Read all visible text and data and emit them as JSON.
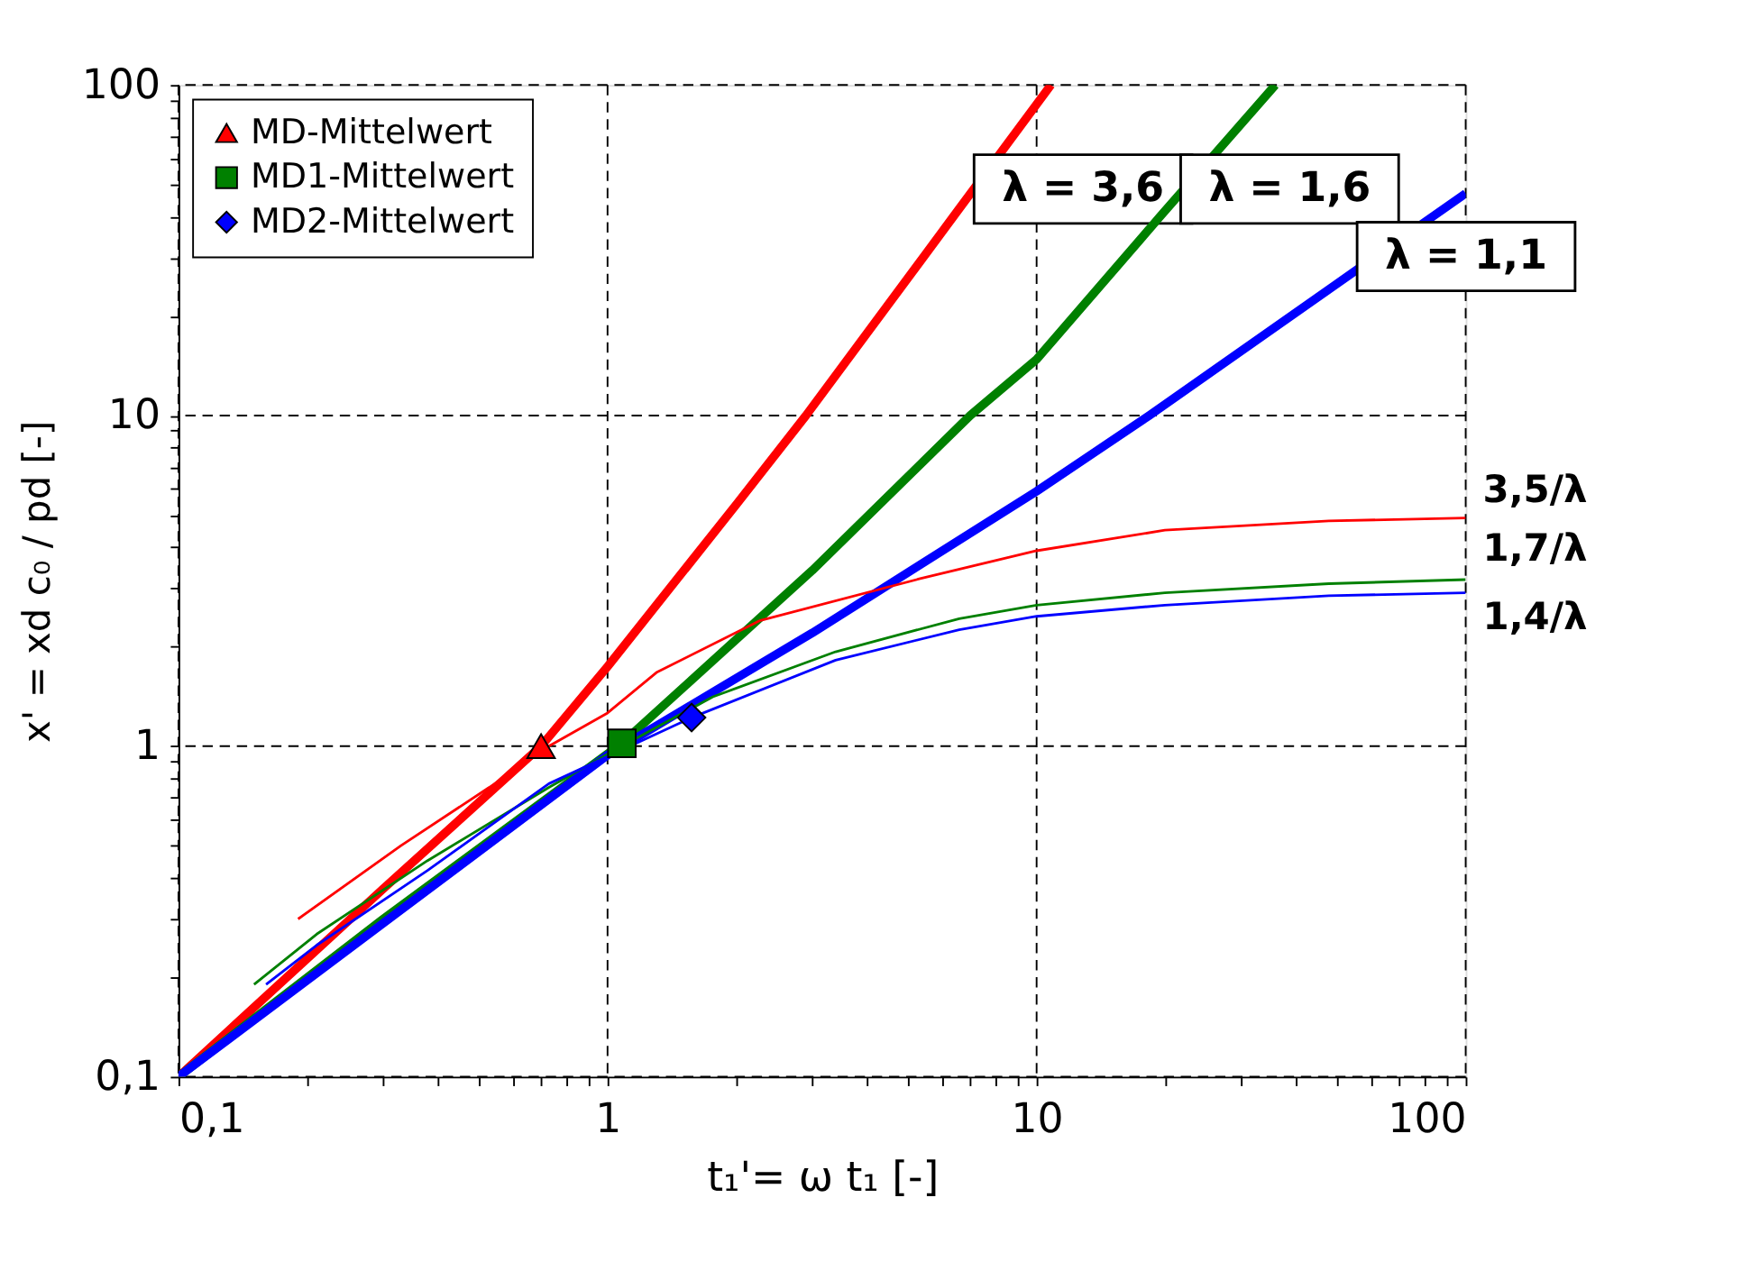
{
  "chart_data": {
    "type": "line",
    "xlabel": "t₁'= ω t₁ [-]",
    "ylabel": "x' = xd c₀ / pd [-]",
    "log": "xy",
    "grid": true,
    "legend": "top left",
    "xlim": [
      0.1,
      100
    ],
    "ylim": [
      0.1,
      100
    ],
    "xticks": [
      {
        "value": 0.1,
        "label": "0,1"
      },
      {
        "value": 0.2,
        "label": null
      },
      {
        "value": 0.3,
        "label": null
      },
      {
        "value": 0.4,
        "label": null
      },
      {
        "value": 0.5,
        "label": null
      },
      {
        "value": 0.6,
        "label": null
      },
      {
        "value": 0.7,
        "label": null
      },
      {
        "value": 0.8,
        "label": null
      },
      {
        "value": 0.9,
        "label": null
      },
      1,
      {
        "value": 2,
        "label": null
      },
      {
        "value": 3,
        "label": null
      },
      {
        "value": 4,
        "label": null
      },
      {
        "value": 5,
        "label": null
      },
      {
        "value": 6,
        "label": null
      },
      {
        "value": 7,
        "label": null
      },
      {
        "value": 8,
        "label": null
      },
      {
        "value": 9,
        "label": null
      },
      10,
      {
        "value": 20,
        "label": null
      },
      {
        "value": 30,
        "label": null
      },
      {
        "value": 40,
        "label": null
      },
      {
        "value": 50,
        "label": null
      },
      {
        "value": 60,
        "label": null
      },
      {
        "value": 70,
        "label": null
      },
      {
        "value": 80,
        "label": null
      },
      {
        "value": 90,
        "label": null
      },
      100
    ],
    "yticks": [
      {
        "value": 0.1,
        "label": "0,1"
      },
      {
        "value": 0.2,
        "label": null
      },
      {
        "value": 0.3,
        "label": null
      },
      {
        "value": 0.4,
        "label": null
      },
      {
        "value": 0.5,
        "label": null
      },
      {
        "value": 0.6,
        "label": null
      },
      {
        "value": 0.7,
        "label": null
      },
      {
        "value": 0.8,
        "label": null
      },
      {
        "value": 0.9,
        "label": null
      },
      1,
      {
        "value": 2,
        "label": null
      },
      {
        "value": 3,
        "label": null
      },
      {
        "value": 4,
        "label": null
      },
      {
        "value": 5,
        "label": null
      },
      {
        "value": 6,
        "label": null
      },
      {
        "value": 7,
        "label": null
      },
      {
        "value": 8,
        "label": null
      },
      {
        "value": 9,
        "label": null
      },
      10,
      {
        "value": 20,
        "label": null
      },
      {
        "value": 30,
        "label": null
      },
      {
        "value": 40,
        "label": null
      },
      {
        "value": 50,
        "label": null
      },
      {
        "value": 60,
        "label": null
      },
      {
        "value": 70,
        "label": null
      },
      {
        "value": 80,
        "label": null
      },
      {
        "value": 90,
        "label": null
      },
      100
    ],
    "series": [
      {
        "name": "λ = 3,6",
        "color": "#ff0000",
        "x": [
          0.1,
          0.3,
          0.7,
          1,
          2,
          2.9,
          6.4,
          10.8
        ],
        "values": [
          0.1,
          0.37,
          1.0,
          1.74,
          5.4,
          10,
          40,
          100
        ]
      },
      {
        "name": "λ = 1,6",
        "color": "#008000",
        "x": [
          0.1,
          0.3,
          1.08,
          3,
          7,
          10,
          19.4,
          36
        ],
        "values": [
          0.1,
          0.3,
          1.02,
          3.4,
          10,
          14.8,
          40,
          100
        ]
      },
      {
        "name": "λ = 1,1",
        "color": "#0000ff",
        "x": [
          0.1,
          1,
          3,
          10,
          18.3,
          50,
          100
        ],
        "values": [
          0.1,
          0.94,
          2.2,
          5.9,
          10,
          25,
          47
        ]
      },
      {
        "name": "3,5/λ",
        "color": "#ff0000",
        "x": [
          0.19,
          0.33,
          0.53,
          0.73,
          1.0,
          1.3,
          2.27,
          5.3,
          10,
          19.9,
          48,
          100
        ],
        "values": [
          0.3,
          0.5,
          0.75,
          1.0,
          1.26,
          1.67,
          2.4,
          3.2,
          3.9,
          4.5,
          4.8,
          4.9
        ]
      },
      {
        "name": "1,7/λ",
        "color": "#008000",
        "x": [
          0.15,
          0.21,
          0.38,
          0.73,
          1.08,
          1.76,
          3.4,
          6.6,
          10,
          19.9,
          48,
          100
        ],
        "values": [
          0.19,
          0.27,
          0.45,
          0.75,
          1.0,
          1.41,
          1.93,
          2.43,
          2.67,
          2.91,
          3.1,
          3.19
        ]
      },
      {
        "name": "1,4/λ",
        "color": "#0000ff",
        "x": [
          0.16,
          0.21,
          0.38,
          0.73,
          1.57,
          3.4,
          6.6,
          10,
          19.9,
          48,
          100
        ],
        "values": [
          0.19,
          0.25,
          0.42,
          0.77,
          1.22,
          1.82,
          2.25,
          2.47,
          2.67,
          2.85,
          2.91
        ]
      },
      {
        "name": "MD-Mittelwert",
        "type": "scatter",
        "marker": "triangle",
        "color": "#ff0000",
        "x": [
          0.7
        ],
        "values": [
          1.0
        ]
      },
      {
        "name": "MD1-Mittelwert",
        "type": "scatter",
        "marker": "square",
        "color": "#008000",
        "x": [
          1.08
        ],
        "values": [
          1.02
        ]
      },
      {
        "name": "MD2-Mittelwert",
        "type": "scatter",
        "marker": "diamond",
        "color": "#0000ff",
        "x": [
          1.57
        ],
        "values": [
          1.22
        ]
      }
    ]
  }
}
